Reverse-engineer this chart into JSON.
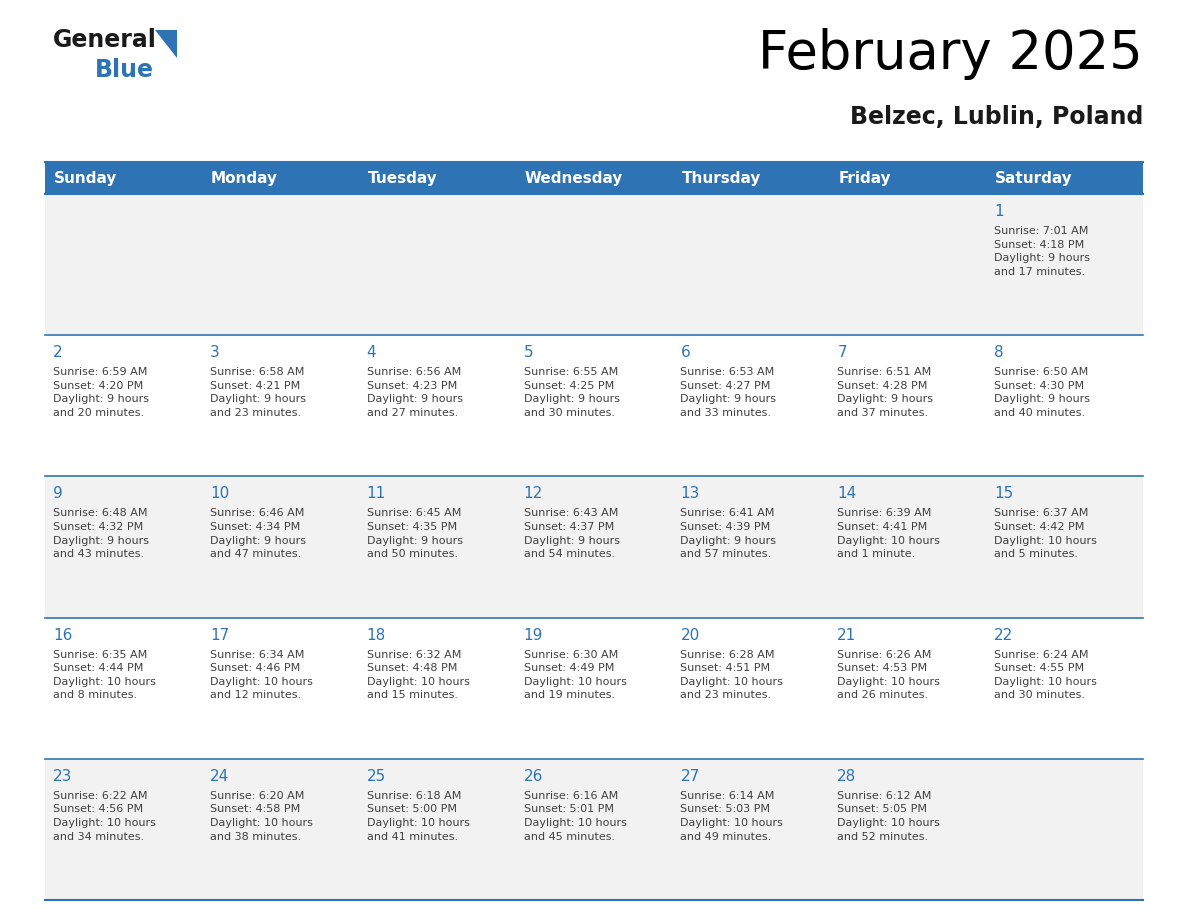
{
  "title": "February 2025",
  "subtitle": "Belzec, Lublin, Poland",
  "header_bg": "#2E74B5",
  "header_text": "#FFFFFF",
  "cell_bg_white": "#FFFFFF",
  "cell_bg_gray": "#F2F2F2",
  "day_number_color": "#2E74B5",
  "text_color": "#404040",
  "line_color": "#2E74B5",
  "logo_general_color": "#1A1A1A",
  "logo_blue_color": "#2E74B5",
  "logo_triangle_color": "#2E74B5",
  "days_of_week": [
    "Sunday",
    "Monday",
    "Tuesday",
    "Wednesday",
    "Thursday",
    "Friday",
    "Saturday"
  ],
  "weeks": [
    [
      {
        "day": null,
        "info": null
      },
      {
        "day": null,
        "info": null
      },
      {
        "day": null,
        "info": null
      },
      {
        "day": null,
        "info": null
      },
      {
        "day": null,
        "info": null
      },
      {
        "day": null,
        "info": null
      },
      {
        "day": 1,
        "info": "Sunrise: 7:01 AM\nSunset: 4:18 PM\nDaylight: 9 hours\nand 17 minutes."
      }
    ],
    [
      {
        "day": 2,
        "info": "Sunrise: 6:59 AM\nSunset: 4:20 PM\nDaylight: 9 hours\nand 20 minutes."
      },
      {
        "day": 3,
        "info": "Sunrise: 6:58 AM\nSunset: 4:21 PM\nDaylight: 9 hours\nand 23 minutes."
      },
      {
        "day": 4,
        "info": "Sunrise: 6:56 AM\nSunset: 4:23 PM\nDaylight: 9 hours\nand 27 minutes."
      },
      {
        "day": 5,
        "info": "Sunrise: 6:55 AM\nSunset: 4:25 PM\nDaylight: 9 hours\nand 30 minutes."
      },
      {
        "day": 6,
        "info": "Sunrise: 6:53 AM\nSunset: 4:27 PM\nDaylight: 9 hours\nand 33 minutes."
      },
      {
        "day": 7,
        "info": "Sunrise: 6:51 AM\nSunset: 4:28 PM\nDaylight: 9 hours\nand 37 minutes."
      },
      {
        "day": 8,
        "info": "Sunrise: 6:50 AM\nSunset: 4:30 PM\nDaylight: 9 hours\nand 40 minutes."
      }
    ],
    [
      {
        "day": 9,
        "info": "Sunrise: 6:48 AM\nSunset: 4:32 PM\nDaylight: 9 hours\nand 43 minutes."
      },
      {
        "day": 10,
        "info": "Sunrise: 6:46 AM\nSunset: 4:34 PM\nDaylight: 9 hours\nand 47 minutes."
      },
      {
        "day": 11,
        "info": "Sunrise: 6:45 AM\nSunset: 4:35 PM\nDaylight: 9 hours\nand 50 minutes."
      },
      {
        "day": 12,
        "info": "Sunrise: 6:43 AM\nSunset: 4:37 PM\nDaylight: 9 hours\nand 54 minutes."
      },
      {
        "day": 13,
        "info": "Sunrise: 6:41 AM\nSunset: 4:39 PM\nDaylight: 9 hours\nand 57 minutes."
      },
      {
        "day": 14,
        "info": "Sunrise: 6:39 AM\nSunset: 4:41 PM\nDaylight: 10 hours\nand 1 minute."
      },
      {
        "day": 15,
        "info": "Sunrise: 6:37 AM\nSunset: 4:42 PM\nDaylight: 10 hours\nand 5 minutes."
      }
    ],
    [
      {
        "day": 16,
        "info": "Sunrise: 6:35 AM\nSunset: 4:44 PM\nDaylight: 10 hours\nand 8 minutes."
      },
      {
        "day": 17,
        "info": "Sunrise: 6:34 AM\nSunset: 4:46 PM\nDaylight: 10 hours\nand 12 minutes."
      },
      {
        "day": 18,
        "info": "Sunrise: 6:32 AM\nSunset: 4:48 PM\nDaylight: 10 hours\nand 15 minutes."
      },
      {
        "day": 19,
        "info": "Sunrise: 6:30 AM\nSunset: 4:49 PM\nDaylight: 10 hours\nand 19 minutes."
      },
      {
        "day": 20,
        "info": "Sunrise: 6:28 AM\nSunset: 4:51 PM\nDaylight: 10 hours\nand 23 minutes."
      },
      {
        "day": 21,
        "info": "Sunrise: 6:26 AM\nSunset: 4:53 PM\nDaylight: 10 hours\nand 26 minutes."
      },
      {
        "day": 22,
        "info": "Sunrise: 6:24 AM\nSunset: 4:55 PM\nDaylight: 10 hours\nand 30 minutes."
      }
    ],
    [
      {
        "day": 23,
        "info": "Sunrise: 6:22 AM\nSunset: 4:56 PM\nDaylight: 10 hours\nand 34 minutes."
      },
      {
        "day": 24,
        "info": "Sunrise: 6:20 AM\nSunset: 4:58 PM\nDaylight: 10 hours\nand 38 minutes."
      },
      {
        "day": 25,
        "info": "Sunrise: 6:18 AM\nSunset: 5:00 PM\nDaylight: 10 hours\nand 41 minutes."
      },
      {
        "day": 26,
        "info": "Sunrise: 6:16 AM\nSunset: 5:01 PM\nDaylight: 10 hours\nand 45 minutes."
      },
      {
        "day": 27,
        "info": "Sunrise: 6:14 AM\nSunset: 5:03 PM\nDaylight: 10 hours\nand 49 minutes."
      },
      {
        "day": 28,
        "info": "Sunrise: 6:12 AM\nSunset: 5:05 PM\nDaylight: 10 hours\nand 52 minutes."
      },
      {
        "day": null,
        "info": null
      }
    ]
  ],
  "fig_width": 11.88,
  "fig_height": 9.18,
  "dpi": 100
}
